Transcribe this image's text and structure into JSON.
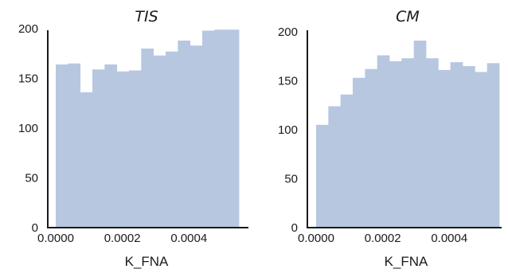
{
  "chart_data": [
    {
      "type": "bar",
      "title": "TIS",
      "xlabel": "K_FNA",
      "ylabel": "",
      "bar_color": "#b7c7e0",
      "grid": false,
      "xlim": [
        0,
        0.00055
      ],
      "ylim": [
        0,
        200
      ],
      "bin_edges": [
        0,
        3.67e-05,
        7.33e-05,
        0.00011,
        0.0001467,
        0.0001833,
        0.00022,
        0.0002567,
        0.0002933,
        0.00033,
        0.0003667,
        0.0004033,
        0.00044,
        0.0004767,
        0.0005133,
        0.00055
      ],
      "values": [
        164,
        165,
        136,
        159,
        164,
        157,
        158,
        180,
        173,
        177,
        188,
        183,
        198,
        199,
        199
      ],
      "x_ticks": [
        "0.0000",
        "0.0002",
        "0.0004"
      ],
      "x_tick_values": [
        0,
        0.0002,
        0.0004
      ],
      "y_ticks": [
        "0",
        "50",
        "100",
        "150",
        "200"
      ],
      "y_tick_values": [
        0,
        50,
        100,
        150,
        200
      ]
    },
    {
      "type": "bar",
      "title": "CM",
      "xlabel": "K_FNA",
      "ylabel": "",
      "bar_color": "#b7c7e0",
      "grid": false,
      "xlim": [
        0,
        0.00055
      ],
      "ylim": [
        0,
        200
      ],
      "bin_edges": [
        0,
        3.67e-05,
        7.33e-05,
        0.00011,
        0.0001467,
        0.0001833,
        0.00022,
        0.0002567,
        0.0002933,
        0.00033,
        0.0003667,
        0.0004033,
        0.00044,
        0.0004767,
        0.0005133,
        0.00055
      ],
      "values": [
        105,
        124,
        136,
        153,
        162,
        176,
        170,
        173,
        191,
        173,
        161,
        169,
        165,
        159,
        168
      ],
      "x_ticks": [
        "0.0000",
        "0.0002",
        "0.0004"
      ],
      "x_tick_values": [
        0,
        0.0002,
        0.0004
      ],
      "y_ticks": [
        "0",
        "50",
        "100",
        "150",
        "200"
      ],
      "y_tick_values": [
        0,
        50,
        100,
        150,
        200
      ]
    }
  ]
}
